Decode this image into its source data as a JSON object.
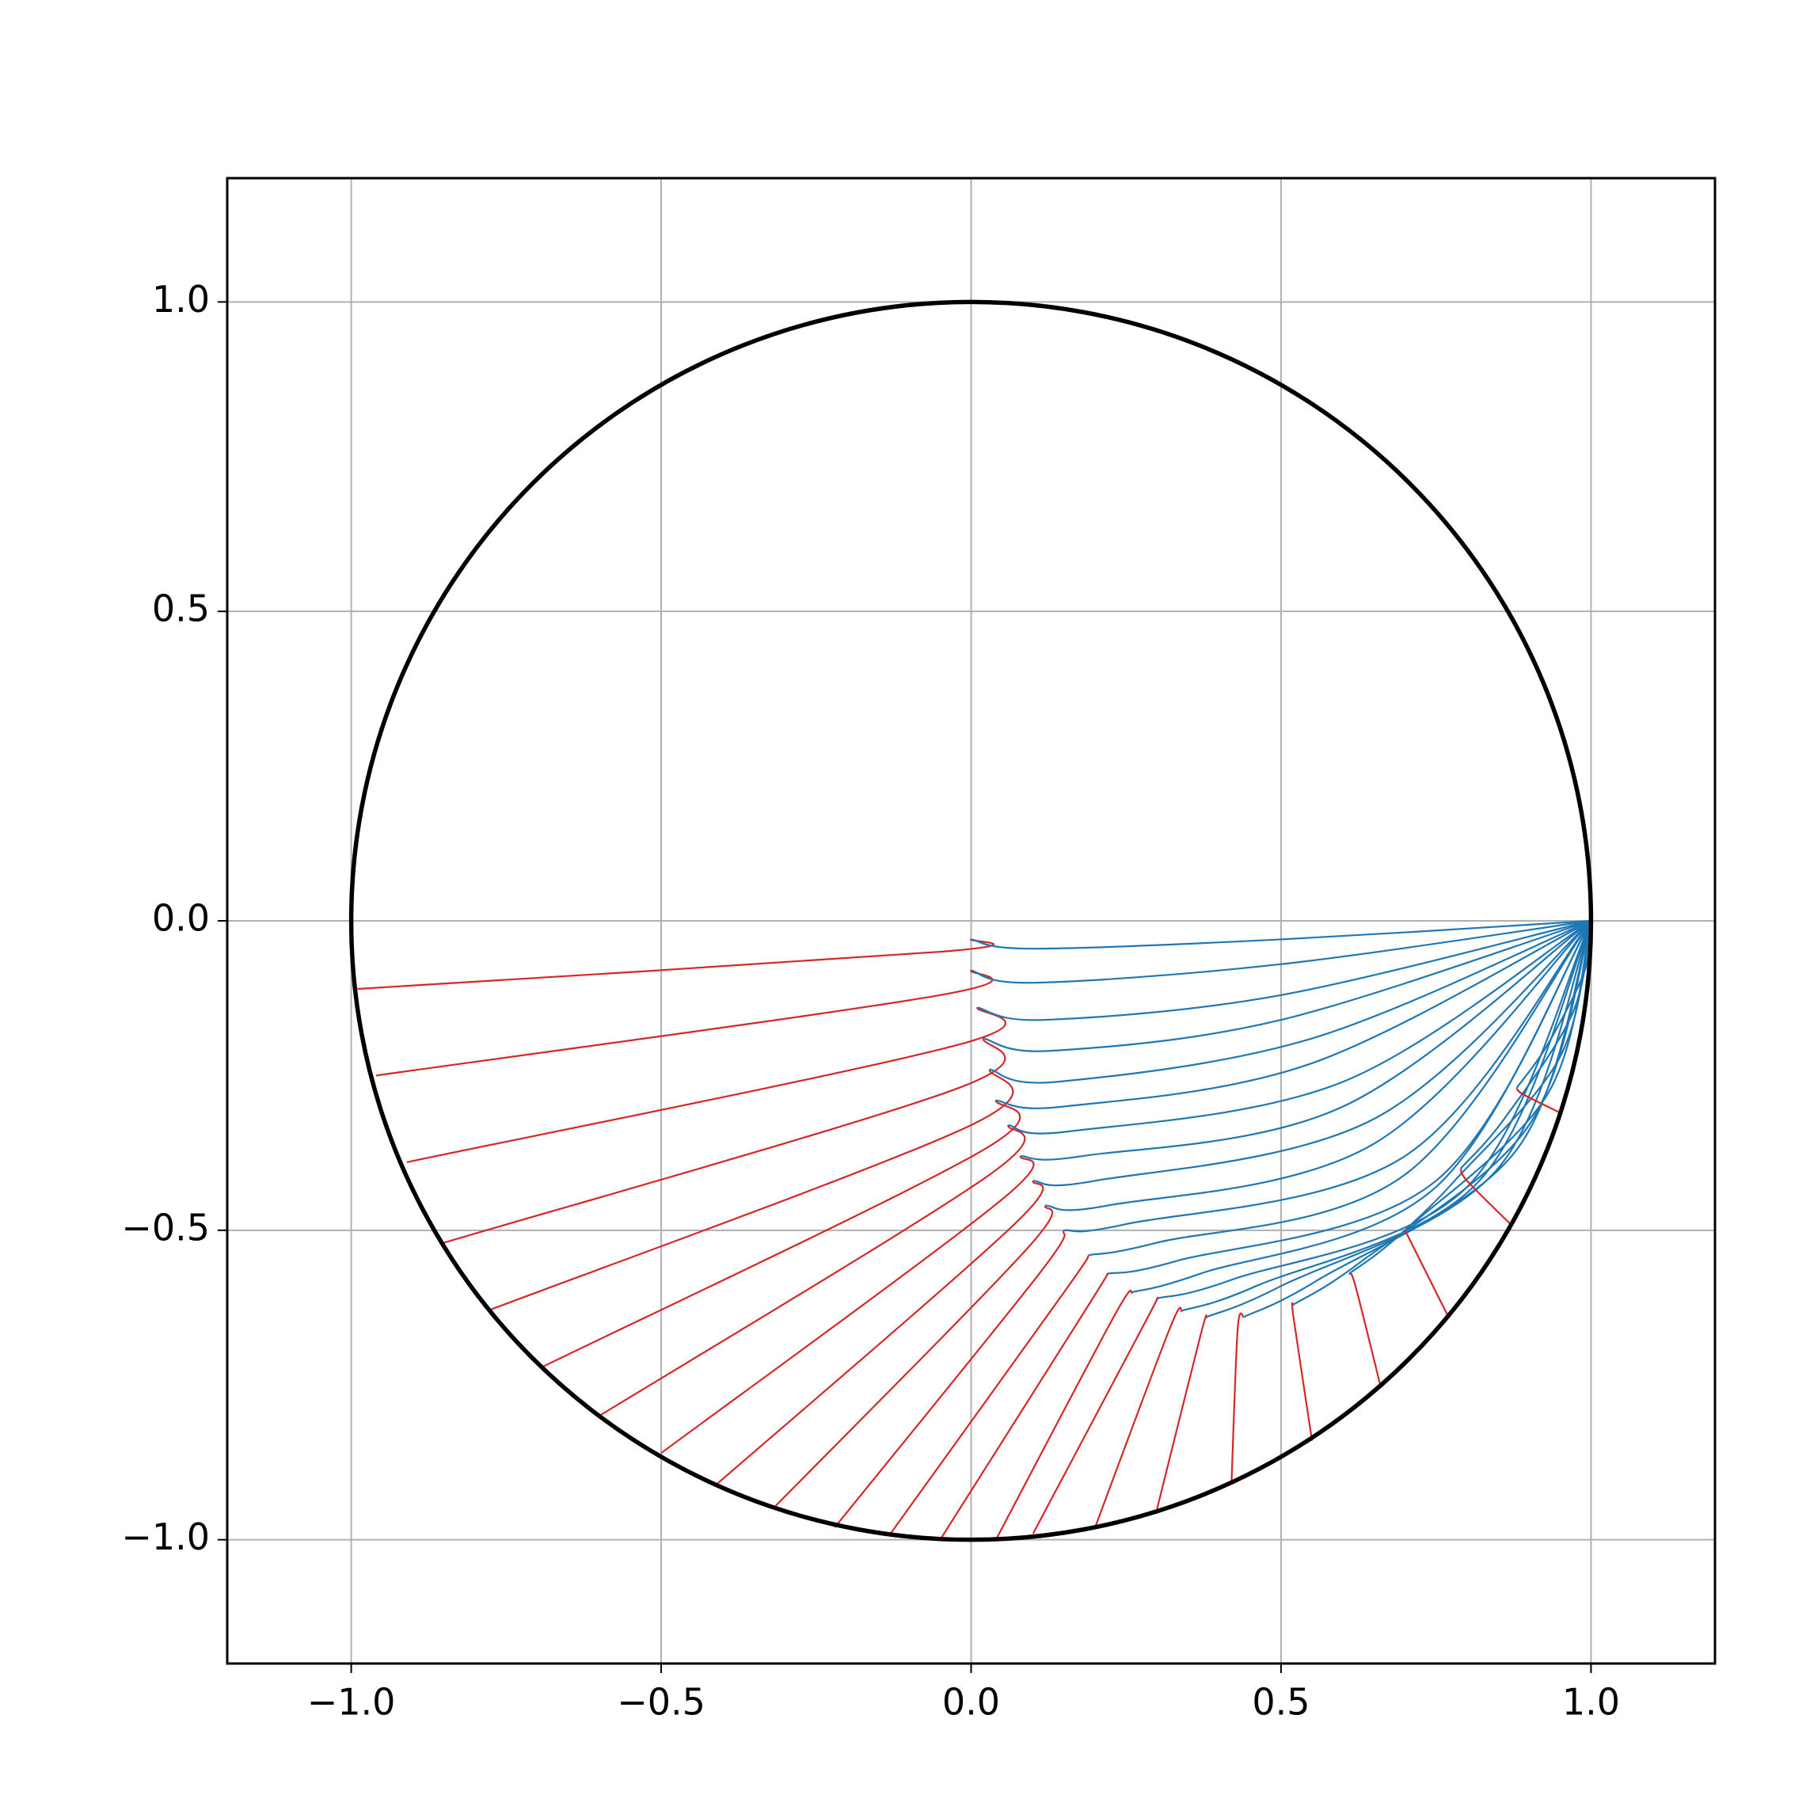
{
  "chart_data": {
    "type": "line",
    "xlim": [
      -1.2,
      1.2
    ],
    "ylim": [
      -1.2,
      1.2
    ],
    "xticks": [
      {
        "value": -1,
        "label": "−1.0"
      },
      {
        "value": -0.5,
        "label": "−0.5"
      },
      {
        "value": 0,
        "label": "0.0"
      },
      0.5,
      {
        "value": 1,
        "label": "1.0"
      }
    ],
    "yticks": [
      {
        "value": -1,
        "label": "−1.0"
      },
      {
        "value": -0.5,
        "label": "−0.5"
      },
      {
        "value": 0,
        "label": "0.0"
      },
      0.5,
      {
        "value": 1,
        "label": "1.0"
      }
    ],
    "grid": true,
    "circle": {
      "x": 0,
      "y": 0,
      "r": 1,
      "color": "#000000"
    },
    "series": [
      {
        "color": "#d62728",
        "x": [
          -0.99,
          -0.05,
          0
        ],
        "y": [
          -0.11,
          -0.05,
          -0.03
        ]
      },
      {
        "color": "#1f77b4",
        "x": [
          0,
          0.1,
          0.5,
          1
        ],
        "y": [
          -0.03,
          -0.045,
          -0.03,
          0
        ]
      },
      {
        "color": "#d62728",
        "x": [
          -0.96,
          -0.05,
          0
        ],
        "y": [
          -0.25,
          -0.12,
          -0.08
        ]
      },
      {
        "color": "#1f77b4",
        "x": [
          0,
          0.1,
          0.5,
          1
        ],
        "y": [
          -0.08,
          -0.1,
          -0.07,
          0
        ]
      },
      {
        "color": "#d62728",
        "x": [
          -0.91,
          -0.02,
          0.01
        ],
        "y": [
          -0.39,
          -0.2,
          -0.14
        ]
      },
      {
        "color": "#1f77b4",
        "x": [
          0.01,
          0.12,
          0.5,
          1
        ],
        "y": [
          -0.14,
          -0.16,
          -0.12,
          0
        ]
      },
      {
        "color": "#d62728",
        "x": [
          -0.85,
          -0.02,
          0.02
        ],
        "y": [
          -0.52,
          -0.27,
          -0.19
        ]
      },
      {
        "color": "#1f77b4",
        "x": [
          0.02,
          0.13,
          0.5,
          1
        ],
        "y": [
          -0.19,
          -0.21,
          -0.16,
          0
        ]
      },
      {
        "color": "#d62728",
        "x": [
          -0.78,
          0,
          0.03
        ],
        "y": [
          -0.63,
          -0.33,
          -0.24
        ]
      },
      {
        "color": "#1f77b4",
        "x": [
          0.03,
          0.14,
          0.55,
          1
        ],
        "y": [
          -0.24,
          -0.26,
          -0.19,
          0
        ]
      },
      {
        "color": "#d62728",
        "x": [
          -0.69,
          0.02,
          0.04
        ],
        "y": [
          -0.72,
          -0.37,
          -0.29
        ]
      },
      {
        "color": "#1f77b4",
        "x": [
          0.04,
          0.15,
          0.55,
          1
        ],
        "y": [
          -0.29,
          -0.3,
          -0.23,
          0
        ]
      },
      {
        "color": "#d62728",
        "x": [
          -0.6,
          0.03,
          0.06
        ],
        "y": [
          -0.8,
          -0.41,
          -0.33
        ]
      },
      {
        "color": "#1f77b4",
        "x": [
          0.06,
          0.16,
          0.6,
          1
        ],
        "y": [
          -0.33,
          -0.34,
          -0.26,
          0
        ]
      },
      {
        "color": "#d62728",
        "x": [
          -0.5,
          0.05,
          0.08
        ],
        "y": [
          -0.86,
          -0.45,
          -0.38
        ]
      },
      {
        "color": "#1f77b4",
        "x": [
          0.08,
          0.18,
          0.6,
          1
        ],
        "y": [
          -0.38,
          -0.38,
          -0.3,
          0
        ]
      },
      {
        "color": "#d62728",
        "x": [
          -0.41,
          0.07,
          0.1
        ],
        "y": [
          -0.91,
          -0.49,
          -0.42
        ]
      },
      {
        "color": "#1f77b4",
        "x": [
          0.1,
          0.2,
          0.65,
          1
        ],
        "y": [
          -0.42,
          -0.42,
          -0.32,
          0
        ]
      },
      {
        "color": "#d62728",
        "x": [
          -0.32,
          0.09,
          0.12
        ],
        "y": [
          -0.95,
          -0.53,
          -0.46
        ]
      },
      {
        "color": "#1f77b4",
        "x": [
          0.12,
          0.22,
          0.65,
          1
        ],
        "y": [
          -0.46,
          -0.46,
          -0.36,
          0
        ]
      },
      {
        "color": "#d62728",
        "x": [
          -0.22,
          0.11,
          0.15
        ],
        "y": [
          -0.98,
          -0.57,
          -0.5
        ]
      },
      {
        "color": "#1f77b4",
        "x": [
          0.15,
          0.25,
          0.7,
          1
        ],
        "y": [
          -0.5,
          -0.49,
          -0.38,
          0
        ]
      },
      {
        "color": "#d62728",
        "x": [
          -0.13,
          0.15,
          0.19
        ],
        "y": [
          -0.99,
          -0.6,
          -0.54
        ]
      },
      {
        "color": "#1f77b4",
        "x": [
          0.19,
          0.3,
          0.7,
          1
        ],
        "y": [
          -0.54,
          -0.52,
          -0.41,
          0
        ]
      },
      {
        "color": "#d62728",
        "x": [
          -0.05,
          0.19,
          0.22
        ],
        "y": [
          -1,
          -0.62,
          -0.57
        ]
      },
      {
        "color": "#1f77b4",
        "x": [
          0.22,
          0.33,
          0.75,
          1
        ],
        "y": [
          -0.57,
          -0.55,
          -0.42,
          0
        ]
      },
      {
        "color": "#d62728",
        "x": [
          0.04,
          0.23,
          0.26
        ],
        "y": [
          -1,
          -0.64,
          -0.6
        ]
      },
      {
        "color": "#1f77b4",
        "x": [
          0.26,
          0.37,
          0.75,
          1
        ],
        "y": [
          -0.6,
          -0.57,
          -0.43,
          0
        ]
      },
      {
        "color": "#d62728",
        "x": [
          0.1,
          0.28,
          0.3
        ],
        "y": [
          -0.99,
          -0.65,
          -0.61
        ]
      },
      {
        "color": "#1f77b4",
        "x": [
          0.3,
          0.42,
          0.8,
          1
        ],
        "y": [
          -0.61,
          -0.58,
          -0.43,
          0
        ]
      },
      {
        "color": "#d62728",
        "x": [
          0.2,
          0.32,
          0.34
        ],
        "y": [
          -0.98,
          -0.66,
          -0.63
        ]
      },
      {
        "color": "#1f77b4",
        "x": [
          0.34,
          0.46,
          0.82,
          1
        ],
        "y": [
          -0.63,
          -0.59,
          -0.42,
          0
        ]
      },
      {
        "color": "#d62728",
        "x": [
          0.3,
          0.37,
          0.38
        ],
        "y": [
          -0.95,
          -0.67,
          -0.64
        ]
      },
      {
        "color": "#1f77b4",
        "x": [
          0.38,
          0.5,
          0.85,
          1
        ],
        "y": [
          -0.64,
          -0.59,
          -0.4,
          0
        ]
      },
      {
        "color": "#d62728",
        "x": [
          0.42,
          0.43,
          0.44
        ],
        "y": [
          -0.91,
          -0.66,
          -0.64
        ]
      },
      {
        "color": "#1f77b4",
        "x": [
          0.44,
          0.56,
          0.88,
          1
        ],
        "y": [
          -0.64,
          -0.58,
          -0.37,
          0
        ]
      },
      {
        "color": "#d62728",
        "x": [
          0.55,
          0.52,
          0.52
        ],
        "y": [
          -0.84,
          -0.64,
          -0.62
        ]
      },
      {
        "color": "#1f77b4",
        "x": [
          0.52,
          0.63,
          0.9,
          1
        ],
        "y": [
          -0.62,
          -0.55,
          -0.33,
          0
        ]
      },
      {
        "color": "#d62728",
        "x": [
          0.66,
          0.62,
          0.61
        ],
        "y": [
          -0.75,
          -0.59,
          -0.57
        ]
      },
      {
        "color": "#1f77b4",
        "x": [
          0.61,
          0.7,
          0.93,
          1
        ],
        "y": [
          -0.57,
          -0.5,
          -0.28,
          0
        ]
      },
      {
        "color": "#d62728",
        "x": [
          0.77,
          0.71,
          0.7
        ],
        "y": [
          -0.64,
          -0.52,
          -0.5
        ]
      },
      {
        "color": "#1f77b4",
        "x": [
          0.7,
          0.78,
          0.95,
          1
        ],
        "y": [
          -0.5,
          -0.42,
          -0.22,
          0
        ]
      },
      {
        "color": "#d62728",
        "x": [
          0.87,
          0.8,
          0.79
        ],
        "y": [
          -0.49,
          -0.42,
          -0.4
        ]
      },
      {
        "color": "#1f77b4",
        "x": [
          0.79,
          0.86,
          0.97,
          1
        ],
        "y": [
          -0.4,
          -0.32,
          -0.15,
          0
        ]
      },
      {
        "color": "#d62728",
        "x": [
          0.95,
          0.89,
          0.88
        ],
        "y": [
          -0.31,
          -0.28,
          -0.27
        ]
      },
      {
        "color": "#1f77b4",
        "x": [
          0.88,
          0.93,
          0.99,
          1
        ],
        "y": [
          -0.27,
          -0.2,
          -0.08,
          0
        ]
      }
    ]
  }
}
